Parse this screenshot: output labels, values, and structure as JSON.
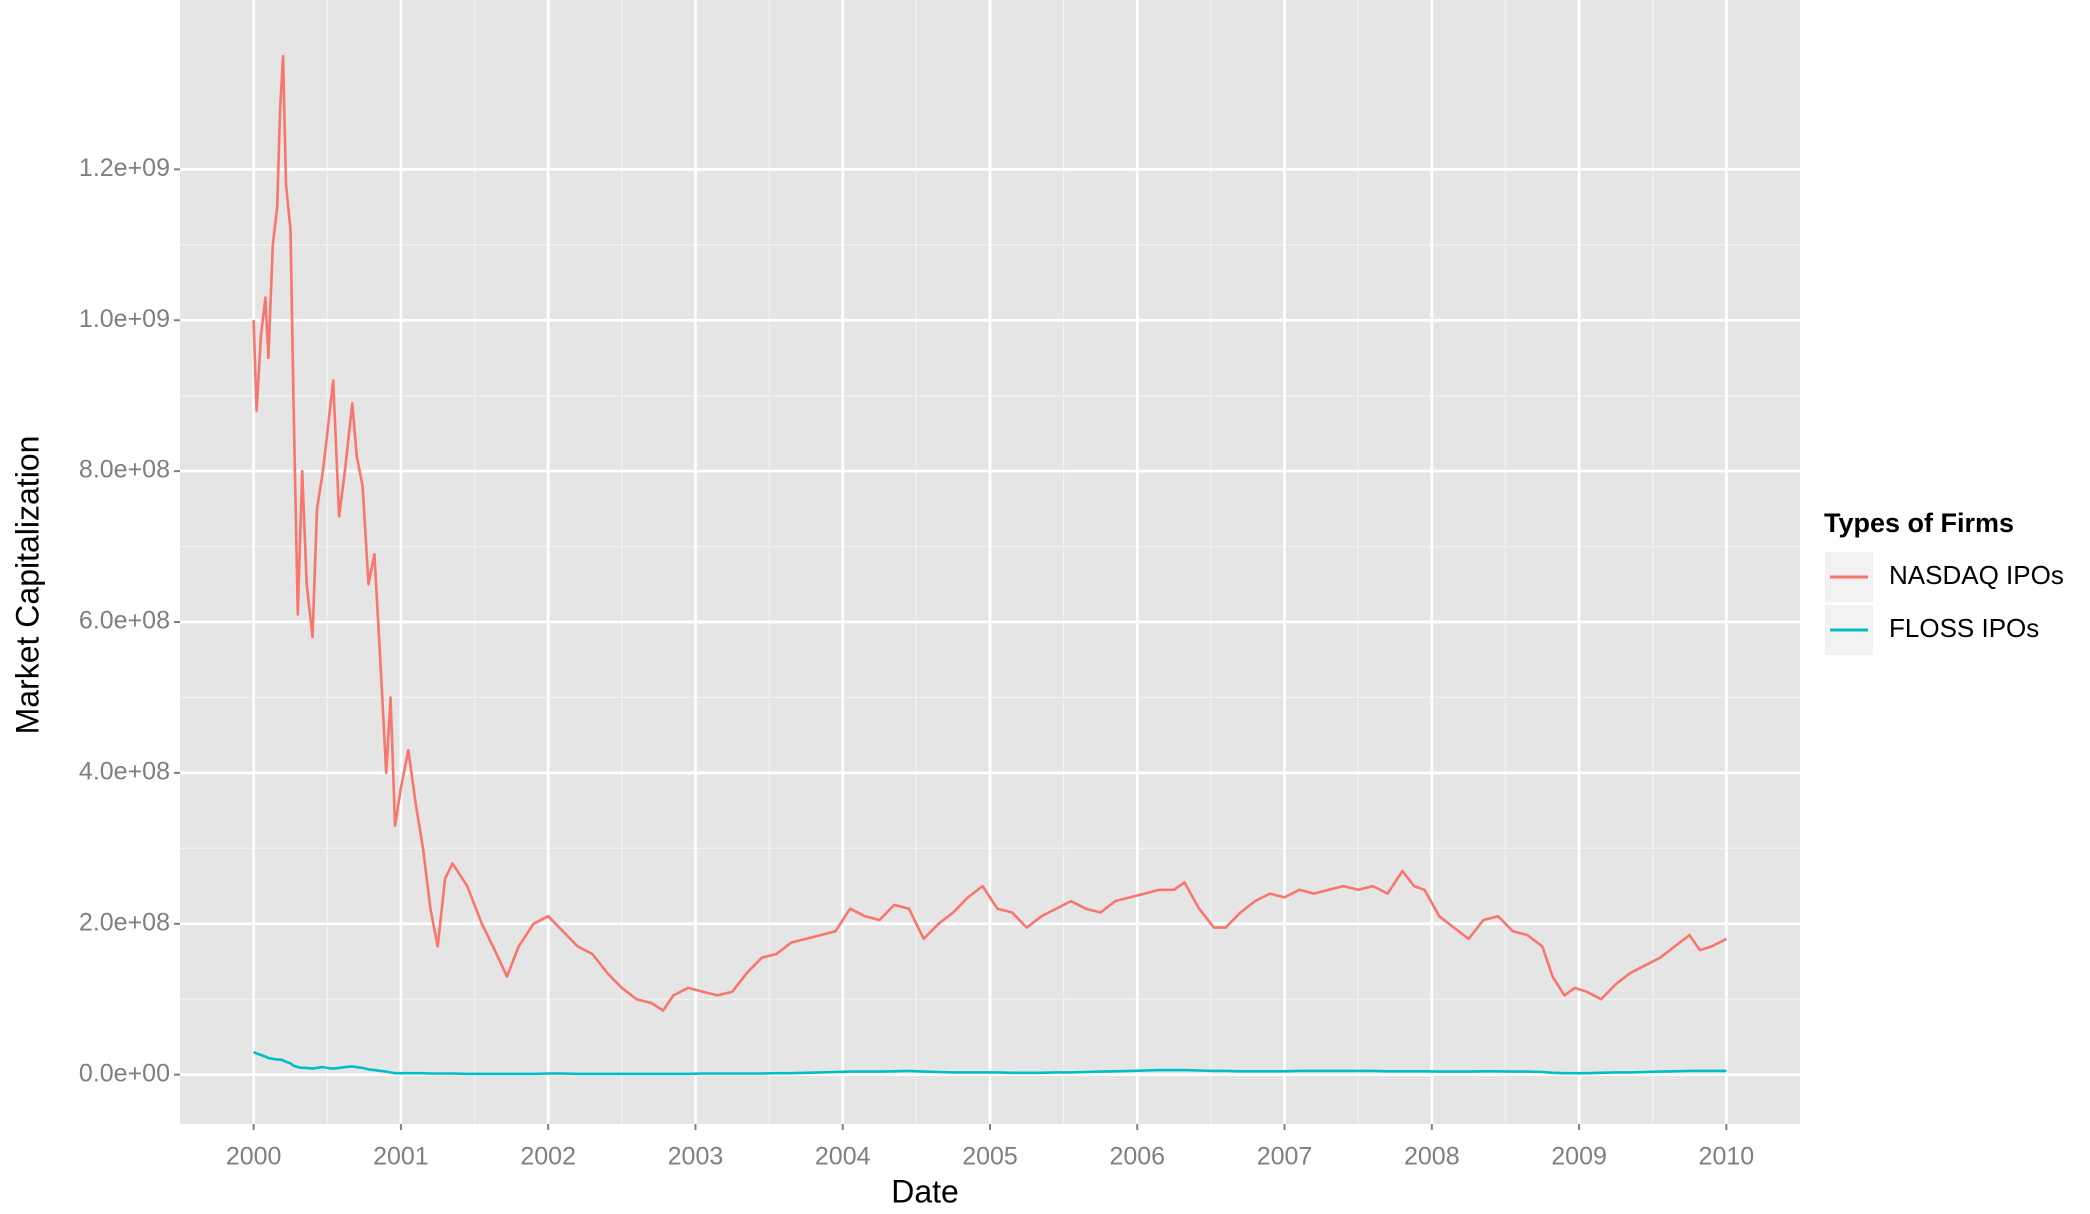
{
  "chart_data": {
    "type": "line",
    "x_label": "Date",
    "y_label": "Market Capitalization",
    "legend_title": "Types of Firms",
    "legend_position": "right",
    "grid": true,
    "x": [
      2000.0,
      2000.02,
      2000.05,
      2000.08,
      2000.1,
      2000.13,
      2000.16,
      2000.18,
      2000.2,
      2000.22,
      2000.25,
      2000.27,
      2000.3,
      2000.33,
      2000.36,
      2000.4,
      2000.43,
      2000.47,
      2000.5,
      2000.54,
      2000.58,
      2000.62,
      2000.67,
      2000.7,
      2000.74,
      2000.78,
      2000.82,
      2000.86,
      2000.9,
      2000.93,
      2000.96,
      2001.0,
      2001.05,
      2001.1,
      2001.15,
      2001.2,
      2001.25,
      2001.3,
      2001.35,
      2001.45,
      2001.55,
      2001.65,
      2001.72,
      2001.8,
      2001.9,
      2002.0,
      2002.1,
      2002.2,
      2002.3,
      2002.4,
      2002.5,
      2002.6,
      2002.7,
      2002.78,
      2002.85,
      2002.95,
      2003.05,
      2003.15,
      2003.25,
      2003.35,
      2003.45,
      2003.55,
      2003.65,
      2003.75,
      2003.85,
      2003.95,
      2004.05,
      2004.15,
      2004.25,
      2004.35,
      2004.45,
      2004.55,
      2004.65,
      2004.75,
      2004.85,
      2004.95,
      2005.05,
      2005.15,
      2005.25,
      2005.35,
      2005.45,
      2005.55,
      2005.65,
      2005.75,
      2005.85,
      2005.95,
      2006.05,
      2006.15,
      2006.25,
      2006.32,
      2006.42,
      2006.52,
      2006.6,
      2006.7,
      2006.8,
      2006.9,
      2007.0,
      2007.1,
      2007.2,
      2007.3,
      2007.4,
      2007.5,
      2007.6,
      2007.7,
      2007.8,
      2007.88,
      2007.95,
      2008.05,
      2008.15,
      2008.25,
      2008.35,
      2008.45,
      2008.55,
      2008.65,
      2008.75,
      2008.82,
      2008.9,
      2008.97,
      2009.05,
      2009.15,
      2009.25,
      2009.35,
      2009.45,
      2009.55,
      2009.65,
      2009.75,
      2009.82,
      2009.9,
      2010.0
    ],
    "series": [
      {
        "name": "NASDAQ IPOs",
        "color": "#f8766d",
        "values": [
          1000000000.0,
          880000000.0,
          980000000.0,
          1030000000.0,
          950000000.0,
          1100000000.0,
          1150000000.0,
          1280000000.0,
          1350000000.0,
          1180000000.0,
          1120000000.0,
          900000000.0,
          610000000.0,
          800000000.0,
          650000000.0,
          580000000.0,
          750000000.0,
          800000000.0,
          850000000.0,
          920000000.0,
          740000000.0,
          800000000.0,
          890000000.0,
          820000000.0,
          780000000.0,
          650000000.0,
          690000000.0,
          550000000.0,
          400000000.0,
          500000000.0,
          330000000.0,
          380000000.0,
          430000000.0,
          360000000.0,
          300000000.0,
          220000000.0,
          170000000.0,
          260000000.0,
          280000000.0,
          250000000.0,
          200000000.0,
          160000000.0,
          130000000.0,
          170000000.0,
          200000000.0,
          210000000.0,
          190000000.0,
          170000000.0,
          160000000.0,
          135000000.0,
          115000000.0,
          100000000.0,
          95000000.0,
          85000000.0,
          105000000.0,
          115000000.0,
          110000000.0,
          105000000.0,
          110000000.0,
          135000000.0,
          155000000.0,
          160000000.0,
          175000000.0,
          180000000.0,
          185000000.0,
          190000000.0,
          220000000.0,
          210000000.0,
          205000000.0,
          225000000.0,
          220000000.0,
          180000000.0,
          200000000.0,
          215000000.0,
          235000000.0,
          250000000.0,
          220000000.0,
          215000000.0,
          195000000.0,
          210000000.0,
          220000000.0,
          230000000.0,
          220000000.0,
          215000000.0,
          230000000.0,
          235000000.0,
          240000000.0,
          245000000.0,
          245000000.0,
          255000000.0,
          220000000.0,
          195000000.0,
          195000000.0,
          215000000.0,
          230000000.0,
          240000000.0,
          235000000.0,
          245000000.0,
          240000000.0,
          245000000.0,
          250000000.0,
          245000000.0,
          250000000.0,
          240000000.0,
          270000000.0,
          250000000.0,
          245000000.0,
          210000000.0,
          195000000.0,
          180000000.0,
          205000000.0,
          210000000.0,
          190000000.0,
          185000000.0,
          170000000.0,
          130000000.0,
          105000000.0,
          115000000.0,
          110000000.0,
          100000000.0,
          120000000.0,
          135000000.0,
          145000000.0,
          155000000.0,
          170000000.0,
          185000000.0,
          165000000.0,
          170000000.0,
          180000000.0
        ]
      },
      {
        "name": "FLOSS IPOs",
        "color": "#00bfc4",
        "values": [
          30000000.0,
          28000000.0,
          26000000.0,
          24000000.0,
          22000000.0,
          21000000.0,
          20000000.0,
          20000000.0,
          19000000.0,
          17000000.0,
          15000000.0,
          12000000.0,
          10000000.0,
          9000000.0,
          9000000.0,
          8000000.0,
          9000000.0,
          10000000.0,
          9000000.0,
          8000000.0,
          9000000.0,
          10000000.0,
          11000000.0,
          10000000.0,
          9000000.0,
          7000000.0,
          6000000.0,
          5000000.0,
          4000000.0,
          3000000.0,
          2000000.0,
          2000000.0,
          2000000.0,
          2000000.0,
          2000000.0,
          1500000.0,
          1500000.0,
          1500000.0,
          1500000.0,
          1000000.0,
          1000000.0,
          1000000.0,
          1000000.0,
          1000000.0,
          1000000.0,
          1500000.0,
          1500000.0,
          1000000.0,
          1000000.0,
          1000000.0,
          1000000.0,
          1000000.0,
          1000000.0,
          1000000.0,
          1000000.0,
          1000000.0,
          1500000.0,
          1500000.0,
          1500000.0,
          1500000.0,
          1500000.0,
          2000000.0,
          2000000.0,
          2500000.0,
          3000000.0,
          3500000.0,
          4000000.0,
          4000000.0,
          4000000.0,
          4500000.0,
          5000000.0,
          4000000.0,
          3500000.0,
          3000000.0,
          3000000.0,
          3000000.0,
          3000000.0,
          2500000.0,
          2500000.0,
          2500000.0,
          3000000.0,
          3000000.0,
          3500000.0,
          4000000.0,
          4500000.0,
          5000000.0,
          5500000.0,
          6000000.0,
          6000000.0,
          6000000.0,
          5500000.0,
          5000000.0,
          5000000.0,
          4500000.0,
          4500000.0,
          4500000.0,
          4500000.0,
          5000000.0,
          5000000.0,
          5000000.0,
          5000000.0,
          5000000.0,
          5000000.0,
          4500000.0,
          4500000.0,
          4500000.0,
          4500000.0,
          4000000.0,
          4000000.0,
          4000000.0,
          4500000.0,
          4500000.0,
          4000000.0,
          4000000.0,
          3500000.0,
          2500000.0,
          2000000.0,
          2000000.0,
          2000000.0,
          2500000.0,
          3000000.0,
          3000000.0,
          3500000.0,
          4000000.0,
          4500000.0,
          5000000.0,
          5000000.0,
          5000000.0,
          5000000.0
        ]
      }
    ],
    "xlim": [
      1999.5,
      2010.5
    ],
    "xticks": [
      2000,
      2001,
      2002,
      2003,
      2004,
      2005,
      2006,
      2007,
      2008,
      2009,
      2010
    ],
    "ylim": [
      -65400000,
      1424500000
    ],
    "yticks": [
      {
        "value": 0,
        "label": "0.0e+00"
      },
      {
        "value": 200000000,
        "label": "2.0e+08"
      },
      {
        "value": 400000000,
        "label": "4.0e+08"
      },
      {
        "value": 600000000,
        "label": "6.0e+08"
      },
      {
        "value": 800000000,
        "label": "8.0e+08"
      },
      {
        "value": 1000000000,
        "label": "1.0e+09"
      },
      {
        "value": 1200000000,
        "label": "1.2e+09"
      }
    ]
  }
}
